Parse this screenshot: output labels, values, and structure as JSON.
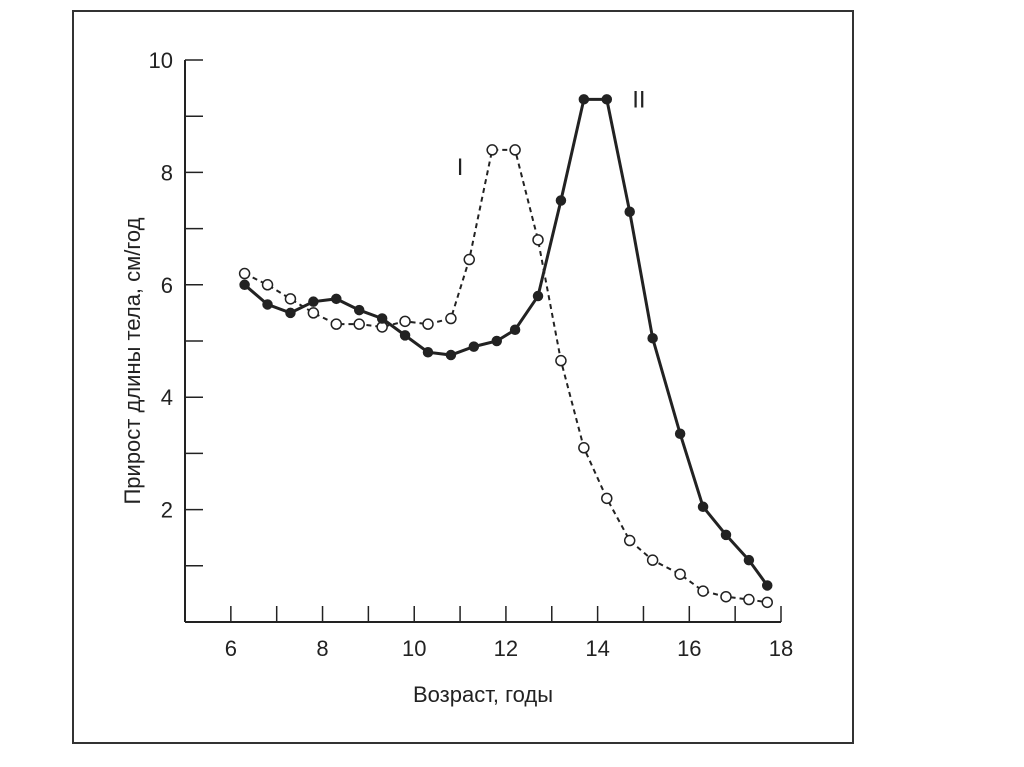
{
  "chart_data": {
    "type": "line",
    "title": "",
    "xlabel": "Возраст, годы",
    "ylabel": "Прирост длины тела, см/год",
    "xlim": [
      5,
      18
    ],
    "ylim": [
      0,
      10
    ],
    "xticks": [
      6,
      8,
      10,
      12,
      14,
      16,
      18
    ],
    "yticks": [
      2,
      4,
      6,
      8,
      10
    ],
    "grid": false,
    "legend": "none",
    "series": [
      {
        "name": "I",
        "style": "dashed",
        "marker": "open-circle",
        "color": "#222222",
        "points": [
          [
            6.3,
            6.2
          ],
          [
            6.8,
            6.0
          ],
          [
            7.3,
            5.75
          ],
          [
            7.8,
            5.5
          ],
          [
            8.3,
            5.3
          ],
          [
            8.8,
            5.3
          ],
          [
            9.3,
            5.25
          ],
          [
            9.8,
            5.35
          ],
          [
            10.3,
            5.3
          ],
          [
            10.8,
            5.4
          ],
          [
            11.2,
            6.45
          ],
          [
            11.7,
            8.4
          ],
          [
            12.2,
            8.4
          ],
          [
            12.7,
            6.8
          ],
          [
            13.2,
            4.65
          ],
          [
            13.7,
            3.1
          ],
          [
            14.2,
            2.2
          ],
          [
            14.7,
            1.45
          ],
          [
            15.2,
            1.1
          ],
          [
            15.8,
            0.85
          ],
          [
            16.3,
            0.55
          ],
          [
            16.8,
            0.45
          ],
          [
            17.3,
            0.4
          ],
          [
            17.7,
            0.35
          ]
        ]
      },
      {
        "name": "II",
        "style": "solid",
        "marker": "filled-circle",
        "color": "#222222",
        "points": [
          [
            6.3,
            6.0
          ],
          [
            6.8,
            5.65
          ],
          [
            7.3,
            5.5
          ],
          [
            7.8,
            5.7
          ],
          [
            8.3,
            5.75
          ],
          [
            8.8,
            5.55
          ],
          [
            9.3,
            5.4
          ],
          [
            9.8,
            5.1
          ],
          [
            10.3,
            4.8
          ],
          [
            10.8,
            4.75
          ],
          [
            11.3,
            4.9
          ],
          [
            11.8,
            5.0
          ],
          [
            12.2,
            5.2
          ],
          [
            12.7,
            5.8
          ],
          [
            13.2,
            7.5
          ],
          [
            13.7,
            9.3
          ],
          [
            14.2,
            9.3
          ],
          [
            14.7,
            7.3
          ],
          [
            15.2,
            5.05
          ],
          [
            15.8,
            3.35
          ],
          [
            16.3,
            2.05
          ],
          [
            16.8,
            1.55
          ],
          [
            17.3,
            1.1
          ],
          [
            17.7,
            0.65
          ]
        ]
      }
    ],
    "annotations": [
      {
        "text": "I",
        "x": 11.0,
        "y": 8.1
      },
      {
        "text": "II",
        "x": 14.9,
        "y": 9.3
      }
    ]
  }
}
